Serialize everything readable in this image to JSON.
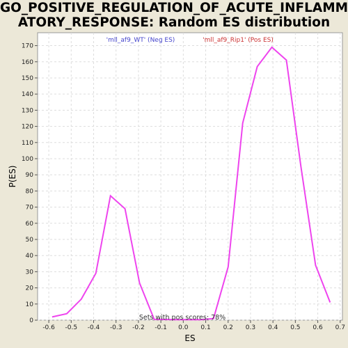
{
  "title_line1": "GO_POSITIVE_REGULATION_OF_ACUTE_INFLAMM",
  "title_line2": "ATORY_RESPONSE: Random ES distribution",
  "colors": {
    "background": "#ece8d8",
    "plot_background": "#ffffff",
    "line": "#ee44ee",
    "neg_legend": "#4444cc",
    "pos_legend": "#cc3333",
    "grid": "#dddddd"
  },
  "chart_data": {
    "type": "line",
    "xlabel": "ES",
    "ylabel": "P(ES)",
    "xlim": [
      -0.65,
      0.71
    ],
    "ylim": [
      0,
      178
    ],
    "grid": true,
    "x_ticks": [
      -0.6,
      -0.5,
      -0.4,
      -0.3,
      -0.2,
      -0.1,
      0.0,
      0.1,
      0.2,
      0.3,
      0.4,
      0.5,
      0.6,
      0.7
    ],
    "x_tick_labels": [
      "-0.6",
      "-0.5",
      "-0.4",
      "-0.3",
      "-0.2",
      "-0.1",
      "0.0",
      "0.1",
      "0.2",
      "0.3",
      "0.4",
      "0.5",
      "0.6",
      "0.7"
    ],
    "y_ticks": [
      0,
      10,
      20,
      30,
      40,
      50,
      60,
      70,
      80,
      90,
      100,
      110,
      120,
      130,
      140,
      150,
      160,
      170
    ],
    "y_tick_labels": [
      "0",
      "10",
      "20",
      "30",
      "40",
      "50",
      "60",
      "70",
      "80",
      "90",
      "100",
      "110",
      "120",
      "130",
      "140",
      "150",
      "160",
      "170"
    ],
    "legend": [
      {
        "label": "'mll_af9_WT' (Neg ES)",
        "color": "#4444cc"
      },
      {
        "label": "'mll_af9_Rip1' (Pos ES)",
        "color": "#cc3333"
      }
    ],
    "annotation": "Sets with pos scores: 78%",
    "series": [
      {
        "x": [
          -0.585,
          -0.52,
          -0.455,
          -0.39,
          -0.325,
          -0.26,
          -0.195,
          -0.13,
          0.0,
          0.08,
          0.135,
          0.2,
          0.265,
          0.33,
          0.395,
          0.46,
          0.525,
          0.59,
          0.655
        ],
        "y": [
          2,
          4,
          13,
          29,
          77,
          69,
          23,
          0.5,
          0.3,
          0.3,
          1,
          33,
          122,
          157,
          169,
          161,
          95,
          34,
          11
        ]
      }
    ]
  }
}
